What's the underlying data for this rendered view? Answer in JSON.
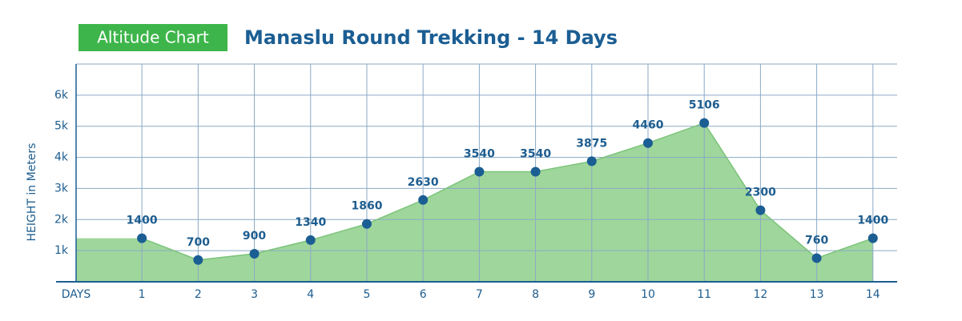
{
  "chart_data": {
    "type": "area",
    "badge": "Altitude Chart",
    "title": "Manaslu Round Trekking - 14 Days",
    "xlabel": "DAYS",
    "ylabel": "HEIGHT in Meters",
    "x": [
      1,
      2,
      3,
      4,
      5,
      6,
      7,
      8,
      9,
      10,
      11,
      12,
      13,
      14
    ],
    "values": [
      1400,
      700,
      900,
      1340,
      1860,
      2630,
      3540,
      3540,
      3875,
      4460,
      5106,
      2300,
      760,
      1400
    ],
    "color": "#9fd69b",
    "marker_color": "#1b5e93",
    "xlim": [
      -0.17,
      14.43
    ],
    "xticks": [
      1,
      2,
      3,
      4,
      5,
      6,
      7,
      8,
      9,
      10,
      11,
      12,
      13,
      14
    ],
    "ylim": [
      0,
      7000
    ],
    "yticks": [
      {
        "value": 1000,
        "label": "1k"
      },
      {
        "value": 2000,
        "label": "2k"
      },
      {
        "value": 3000,
        "label": "3k"
      },
      {
        "value": 4000,
        "label": "4k"
      },
      {
        "value": 5000,
        "label": "5k"
      },
      {
        "value": 6000,
        "label": "6k"
      }
    ],
    "grid": true
  }
}
